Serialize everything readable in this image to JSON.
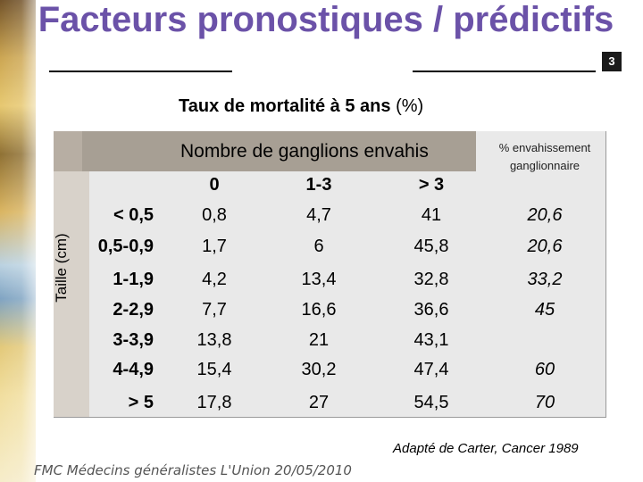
{
  "slide": {
    "title": "Facteurs pronostiques / prédictifs",
    "page_number": "3",
    "subtitle_main": "Taux de mortalité à 5 ans",
    "subtitle_unit": "(%)",
    "source": "Adapté de Carter, Cancer 1989",
    "footer": "FMC Médecins généralistes L'Union 20/05/2010"
  },
  "table": {
    "header_main": "Nombre de ganglions envahis",
    "header_right": "% envahissement ganglionnaire",
    "row_axis_label": "Taille (cm)",
    "columns": [
      "0",
      "1-3",
      "> 3"
    ],
    "rows": [
      {
        "label": "< 0,5",
        "values": [
          "0,8",
          "4,7",
          "41"
        ],
        "pct": "20,6"
      },
      {
        "label": "0,5-0,9",
        "values": [
          "1,7",
          "6",
          "45,8"
        ],
        "pct": "20,6"
      },
      {
        "label": "1-1,9",
        "values": [
          "4,2",
          "13,4",
          "32,8"
        ],
        "pct": "33,2"
      },
      {
        "label": "2-2,9",
        "values": [
          "7,7",
          "16,6",
          "36,6"
        ],
        "pct": "45"
      },
      {
        "label": "3-3,9",
        "values": [
          "13,8",
          "21",
          "43,1"
        ],
        "pct": ""
      },
      {
        "label": "4-4,9",
        "values": [
          "15,4",
          "30,2",
          "47,4"
        ],
        "pct": "60"
      },
      {
        "label": "> 5",
        "values": [
          "17,8",
          "27",
          "54,5"
        ],
        "pct": "70"
      }
    ]
  }
}
